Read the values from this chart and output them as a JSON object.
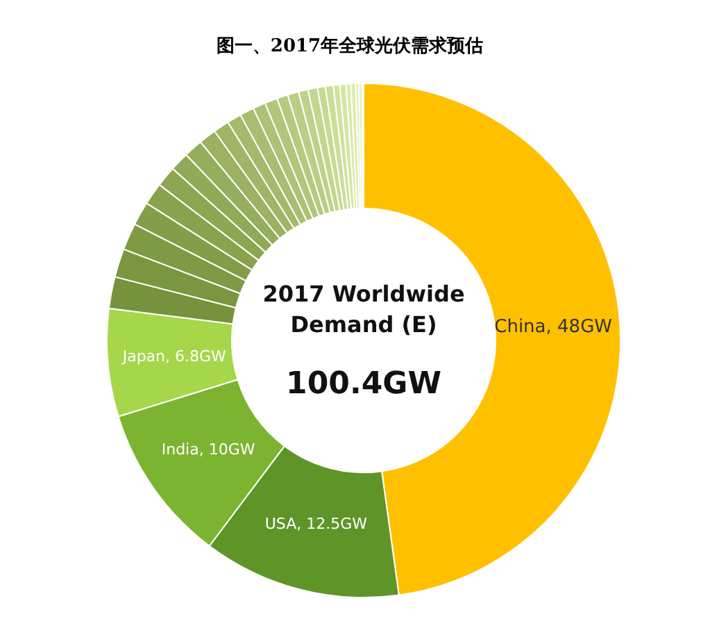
{
  "chart_data": {
    "type": "donut",
    "title": "图一、2017年全球光伏需求预估",
    "annotations": [
      "2017 Worldwide Demand (E)",
      "100.4GW"
    ],
    "categories": [
      "China",
      "USA",
      "India",
      "Japan",
      null,
      null,
      null,
      null,
      null,
      null,
      null,
      null,
      null,
      null,
      null,
      null,
      null,
      null,
      null,
      null,
      null,
      null,
      null,
      null,
      null,
      null,
      null,
      null,
      null,
      null,
      null
    ],
    "values": [
      48,
      12.5,
      10,
      6.8,
      2.0,
      1.8,
      1.7,
      1.5,
      1.4,
      1.3,
      1.2,
      1.2,
      1.1,
      1.0,
      0.9,
      0.9,
      0.8,
      0.8,
      0.7,
      0.7,
      0.6,
      0.6,
      0.5,
      0.5,
      0.4,
      0.4,
      0.3,
      0.3,
      0.2,
      0.2,
      0.1
    ],
    "value_labels": [
      "48GW",
      "12.5GW",
      "10GW",
      "6.8GW",
      null,
      null,
      null,
      null,
      null,
      null,
      null,
      null,
      null,
      null,
      null,
      null,
      null,
      null,
      null,
      null,
      null,
      null,
      null,
      null,
      null,
      null,
      null,
      null,
      null,
      null,
      null
    ],
    "colors": [
      "#ffc000",
      "#5f9428",
      "#7cb432",
      "#a6d64a",
      "#76923c",
      "#7a963f",
      "#7f9a44",
      "#839e48",
      "#88a24d",
      "#8ca652",
      "#91aa57",
      "#95ae5c",
      "#9ab261",
      "#9eb666",
      "#a3ba6b",
      "#a7be70",
      "#acc275",
      "#b0c67a",
      "#b5ca7f",
      "#b9ce84",
      "#bed289",
      "#c2d68e",
      "#c7da93",
      "#cbde98",
      "#d0e29d",
      "#d4e6a2",
      "#d8e9a8",
      "#dcecae",
      "#e0efb4",
      "#e4f1ba",
      "#e8f4c0"
    ]
  }
}
